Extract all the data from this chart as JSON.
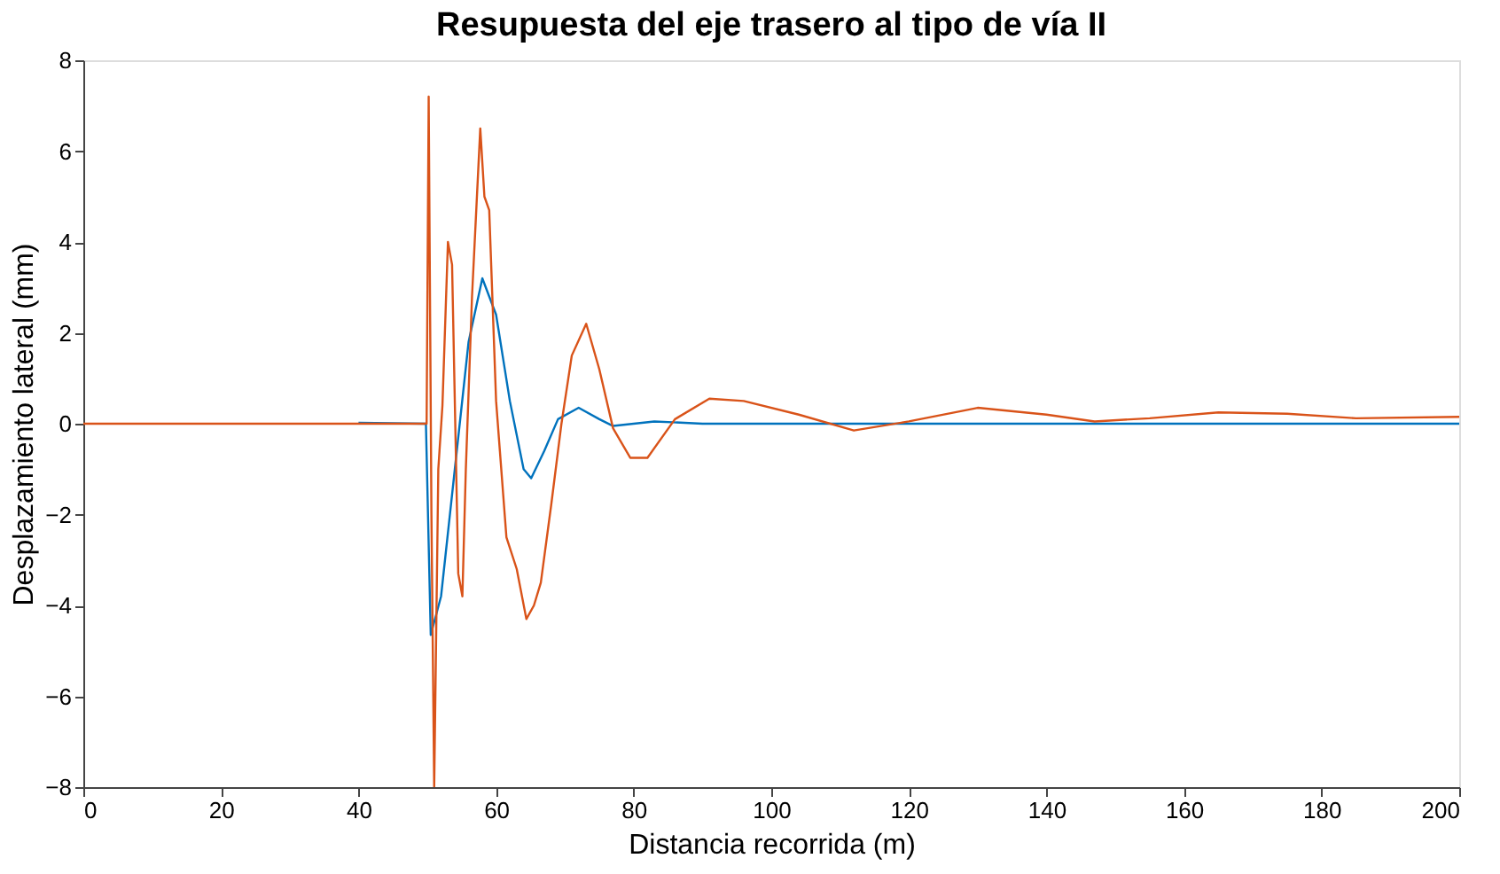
{
  "chart_data": {
    "type": "line",
    "title": "Resupuesta del eje trasero al tipo de vía II",
    "xlabel": "Distancia recorrida (m)",
    "ylabel": "Desplazamiento lateral (mm)",
    "xlim": [
      0,
      200
    ],
    "xticks": [
      0,
      20,
      40,
      60,
      80,
      100,
      120,
      140,
      160,
      180,
      200
    ],
    "ylim": [
      -8,
      8
    ],
    "yticks": [
      -8,
      -6,
      -4,
      -2,
      0,
      2,
      4,
      6,
      8
    ],
    "grid": false,
    "line_style": "solid",
    "marker": "none",
    "series": [
      {
        "color": "#0072bd",
        "x": [
          40,
          49.8,
          50.5,
          52,
          54,
          56,
          58,
          60,
          62,
          64,
          65.1,
          67,
          69,
          72,
          75,
          77,
          80,
          83,
          90,
          100,
          200
        ],
        "values": [
          0.02,
          0,
          -4.65,
          -3.8,
          -1,
          1.8,
          3.2,
          2.4,
          0.5,
          -1,
          -1.2,
          -0.6,
          0.1,
          0.35,
          0.1,
          -0.05,
          0,
          0.05,
          0,
          0,
          0
        ]
      },
      {
        "color": "#d95319",
        "x": [
          0,
          49.9,
          50.2,
          50.6,
          51,
          51.6,
          52.2,
          53,
          53.6,
          54.5,
          55.1,
          55.6,
          56.5,
          57.7,
          58.3,
          59,
          60,
          61.5,
          63,
          64.4,
          65.5,
          66.5,
          68,
          69.5,
          71,
          73.1,
          75,
          77,
          79.5,
          82,
          86,
          91,
          96,
          104,
          112,
          120,
          130,
          140,
          147,
          155,
          165,
          175,
          185,
          200
        ],
        "values": [
          0,
          0,
          7.2,
          -2,
          -8,
          -1,
          0.4,
          4,
          3.5,
          -3.3,
          -3.8,
          -1,
          2.8,
          6.5,
          5,
          4.7,
          0.5,
          -2.5,
          -3.2,
          -4.3,
          -4,
          -3.5,
          -1.8,
          0,
          1.5,
          2.2,
          1.2,
          -0.1,
          -0.75,
          -0.75,
          0.1,
          0.55,
          0.5,
          0.2,
          -0.15,
          0.05,
          0.35,
          0.2,
          0.05,
          0.12,
          0.25,
          0.22,
          0.12,
          0.15
        ]
      }
    ]
  }
}
